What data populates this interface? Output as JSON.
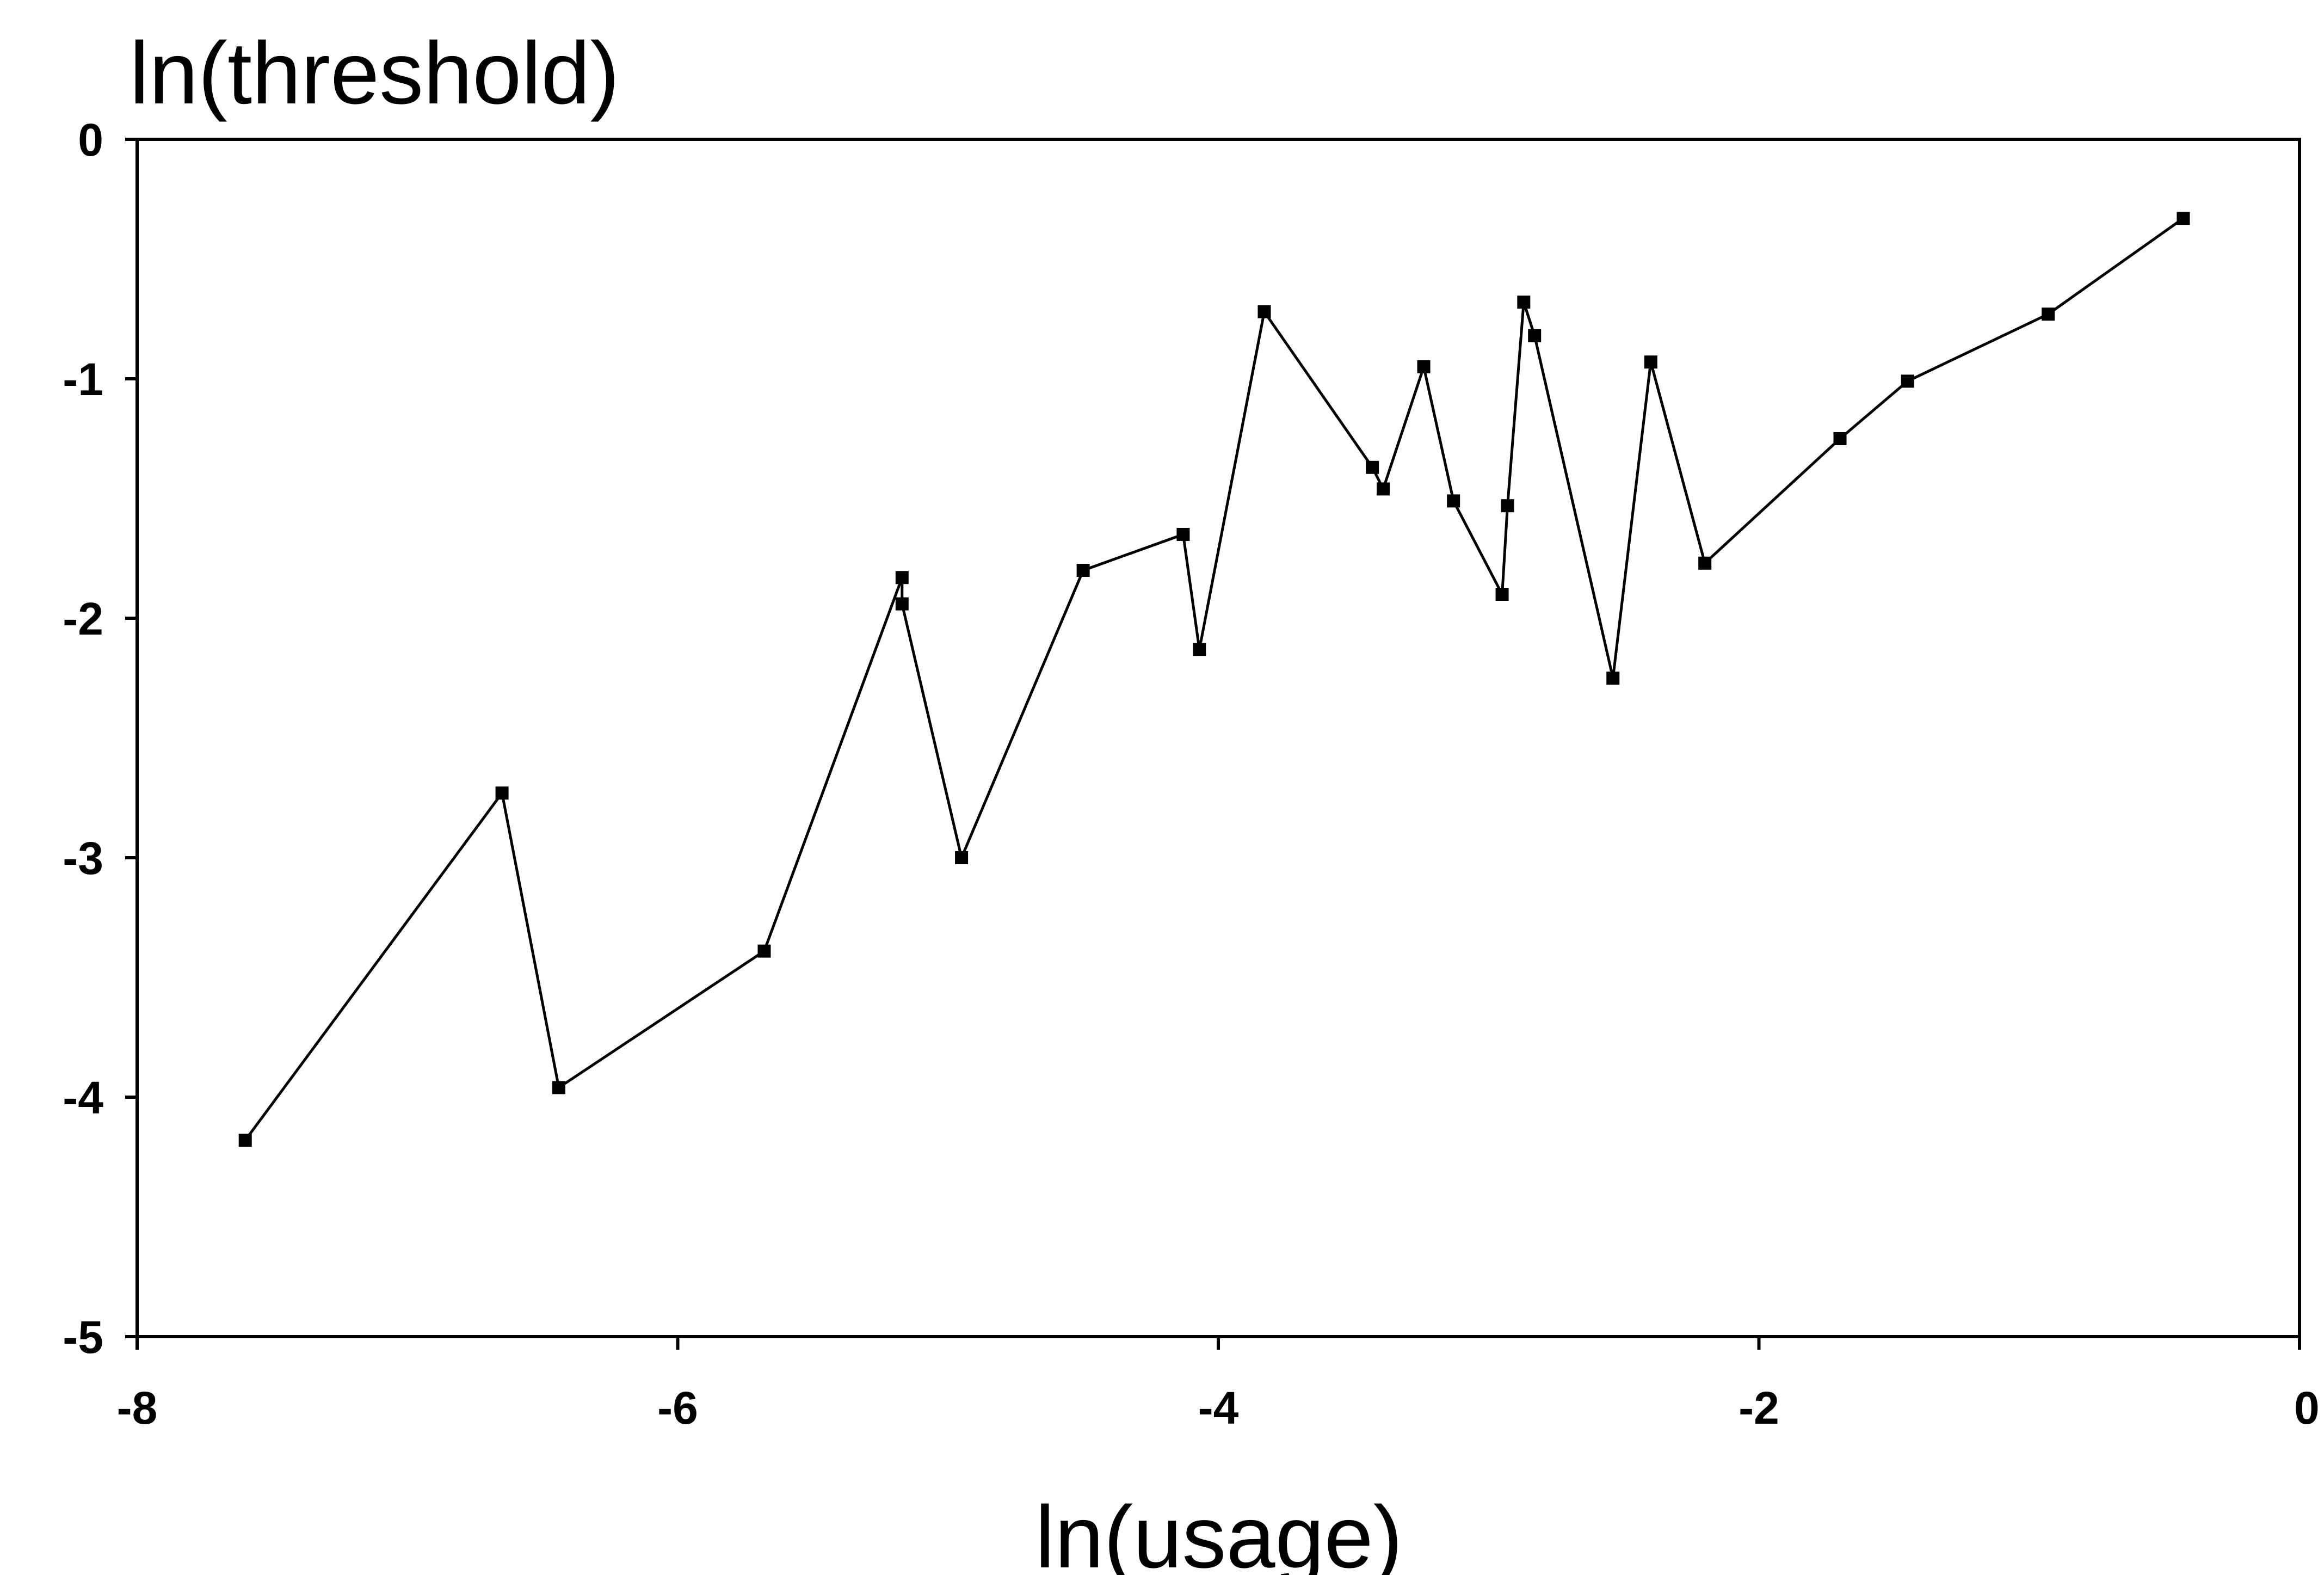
{
  "chart_data": {
    "type": "line",
    "title": "",
    "ylabel": "ln(threshold)",
    "xlabel": "ln(usage)",
    "xlim": [
      -8,
      0
    ],
    "ylim": [
      -5,
      0
    ],
    "x_ticks": [
      -8,
      -6,
      -4,
      -2,
      0
    ],
    "y_ticks": [
      0,
      -1,
      -2,
      -3,
      -4,
      -5
    ],
    "x_tick_labels": [
      "-8",
      "-6",
      "-4",
      "-2",
      "0"
    ],
    "y_tick_labels": [
      "0",
      "-1",
      "-2",
      "-3",
      "-4",
      "-5"
    ],
    "grid": false,
    "legend": "none",
    "series": [
      {
        "points": [
          [
            -7.6,
            -4.18
          ],
          [
            -6.65,
            -2.73
          ],
          [
            -6.44,
            -3.96
          ],
          [
            -5.68,
            -3.39
          ],
          [
            -5.17,
            -1.83
          ],
          [
            -5.17,
            -1.94
          ],
          [
            -4.95,
            -3.0
          ],
          [
            -4.5,
            -1.8
          ],
          [
            -4.13,
            -1.65
          ],
          [
            -4.07,
            -2.13
          ],
          [
            -3.83,
            -0.72
          ],
          [
            -3.43,
            -1.37
          ],
          [
            -3.39,
            -1.46
          ],
          [
            -3.24,
            -0.95
          ],
          [
            -3.13,
            -1.51
          ],
          [
            -2.95,
            -1.9
          ],
          [
            -2.93,
            -1.53
          ],
          [
            -2.87,
            -0.68
          ],
          [
            -2.83,
            -0.82
          ],
          [
            -2.54,
            -2.25
          ],
          [
            -2.4,
            -0.93
          ],
          [
            -2.2,
            -1.77
          ],
          [
            -1.7,
            -1.25
          ],
          [
            -1.45,
            -1.01
          ],
          [
            -0.93,
            -0.73
          ],
          [
            -0.43,
            -0.33
          ]
        ]
      }
    ]
  }
}
